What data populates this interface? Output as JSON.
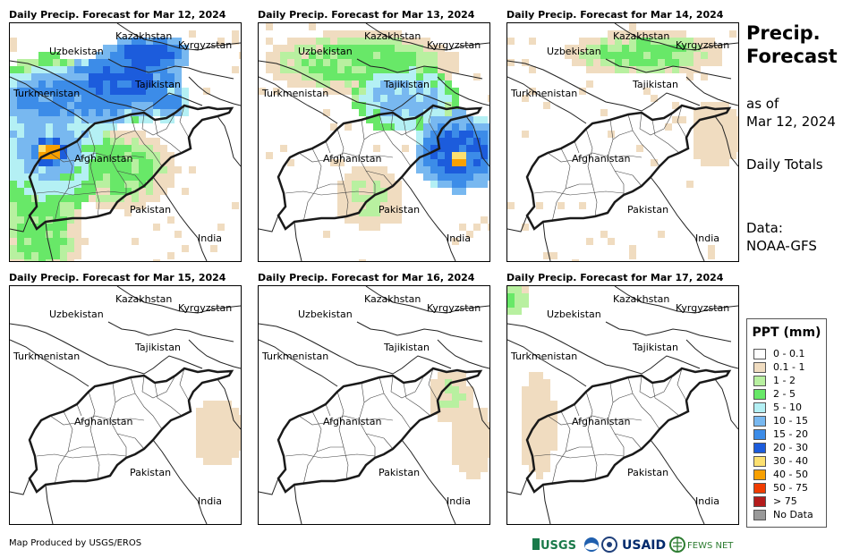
{
  "panels": [
    {
      "title": "Daily Precip. Forecast for Mar 12, 2024"
    },
    {
      "title": "Daily Precip. Forecast for Mar 13, 2024"
    },
    {
      "title": "Daily Precip. Forecast for Mar 14, 2024"
    },
    {
      "title": "Daily Precip. Forecast for Mar 15, 2024"
    },
    {
      "title": "Daily Precip. Forecast for Mar 16, 2024"
    },
    {
      "title": "Daily Precip. Forecast for Mar 17, 2024"
    }
  ],
  "country_labels": {
    "kazakhstan": "Kazakhstan",
    "kyrgyzstan": "Kyrgyzstan",
    "uzbekistan": "Uzbekistan",
    "tajikistan": "Tajikistan",
    "turkmenistan": "Turkmenistan",
    "afghanistan": "Afghanistan",
    "pakistan": "Pakistan",
    "india": "India"
  },
  "side": {
    "title_line1": "Precip.",
    "title_line2": "Forecast",
    "as_of_line1": "as of",
    "as_of_line2": "Mar 12, 2024",
    "daily": "Daily Totals",
    "data_line1": "Data:",
    "data_line2": "NOAA-GFS"
  },
  "legend": {
    "title": "PPT (mm)",
    "items": [
      {
        "label": "0 - 0.1",
        "color": "#ffffff"
      },
      {
        "label": "0.1 - 1",
        "color": "#f0dcc0"
      },
      {
        "label": "1 - 2",
        "color": "#b8f0a0"
      },
      {
        "label": "2 - 5",
        "color": "#68e868"
      },
      {
        "label": "5 - 10",
        "color": "#b4f0f4"
      },
      {
        "label": "10 - 15",
        "color": "#78b8f0"
      },
      {
        "label": "15 - 20",
        "color": "#3c8ce8"
      },
      {
        "label": "20 - 30",
        "color": "#1c5cdc"
      },
      {
        "label": "30 - 40",
        "color": "#fce070"
      },
      {
        "label": "40 - 50",
        "color": "#f8a000"
      },
      {
        "label": "50 - 75",
        "color": "#f03c00"
      },
      {
        "label": "> 75",
        "color": "#b41c1c"
      },
      {
        "label": "No Data",
        "color": "#999999"
      }
    ]
  },
  "credit": "Map Produced by USGS/EROS",
  "logos": {
    "usgs": "USGS",
    "usaid": "USAID",
    "fewsnet": "FEWS NET"
  }
}
